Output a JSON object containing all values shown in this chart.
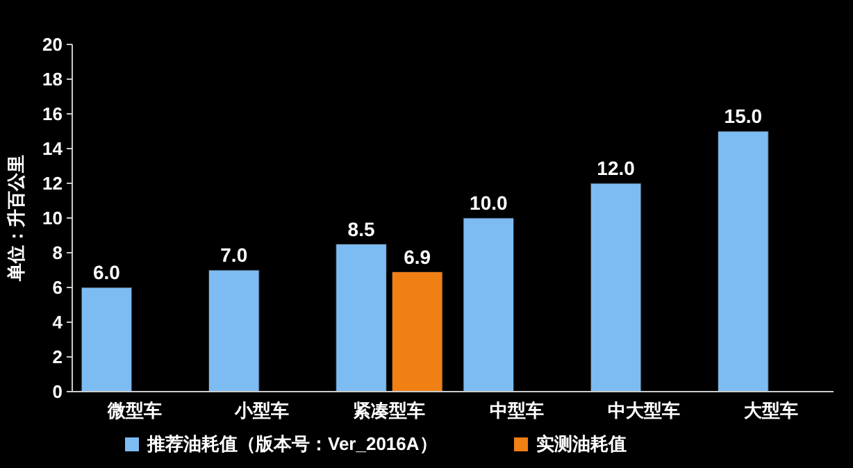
{
  "chart_data": {
    "type": "bar",
    "ylabel": "单位：升百公里",
    "categories": [
      "微型车",
      "小型车",
      "紧凑型车",
      "中型车",
      "中大型车",
      "大型车"
    ],
    "series": [
      {
        "name": "推荐油耗值（版本号：Ver_2016A）",
        "color": "#7dbcf2",
        "values": [
          6,
          7,
          8.5,
          10,
          12,
          15
        ],
        "value_labels": [
          "6.0",
          "7.0",
          "8.5",
          "10.0",
          "12.0",
          "15.0"
        ]
      },
      {
        "name": "实测油耗值",
        "color": "#f07f14",
        "values": [
          null,
          null,
          6.9,
          null,
          null,
          null
        ],
        "value_labels": [
          null,
          null,
          "6.9",
          null,
          null,
          null
        ]
      }
    ],
    "ylim": [
      0,
      20
    ],
    "yticks": [
      0,
      2,
      4,
      6,
      8,
      10,
      12,
      14,
      16,
      18,
      20
    ],
    "grid": false,
    "legend": "bottom"
  }
}
